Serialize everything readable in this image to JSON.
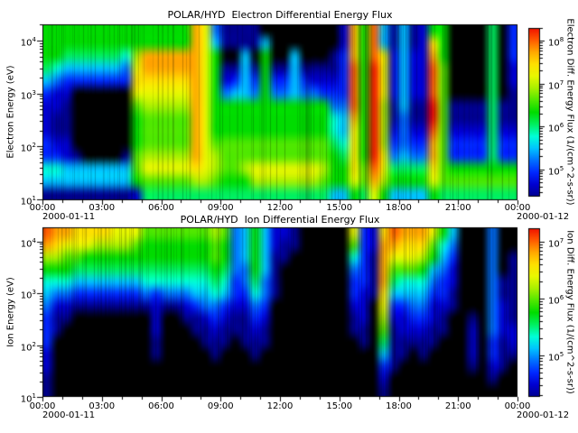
{
  "figure": {
    "background": "#ffffff",
    "text_color": "#000000"
  },
  "palette": [
    "#000000",
    "#00008f",
    "#0000d0",
    "#0028ff",
    "#0070ff",
    "#00c3ff",
    "#00ffd8",
    "#00f060",
    "#00dc00",
    "#50e800",
    "#a8f000",
    "#e8f800",
    "#ffe000",
    "#ffa800",
    "#ff5a00",
    "#f01000"
  ],
  "chart_data": [
    {
      "type": "heatmap",
      "title": "POLAR/HYD  Electron Differential Energy Flux",
      "ylabel": "Electron Energy (eV)",
      "x_ticks": [
        "00:00",
        "03:00",
        "06:00",
        "09:00",
        "12:00",
        "15:00",
        "18:00",
        "21:00",
        "00:00"
      ],
      "x_major_tick_hours": 3,
      "x_minor_tick_hours": 1,
      "date_left": "2000-01-11",
      "date_right": "2000-01-12",
      "x_range_hours": [
        0,
        24
      ],
      "y_ticks_exp": [
        4,
        3,
        2,
        1
      ],
      "y_range_ev_log10": [
        1.0,
        4.3
      ],
      "y_scale": "log",
      "colorbar": {
        "label": "Electron Diff. Energy Flux (1/(cm^2-s-sr))",
        "ticks_exp": [
          8,
          7,
          6,
          5
        ],
        "range_log10": [
          4.4,
          8.3
        ]
      },
      "grid_encoding": "rows top(10^4.3 eV)->bottom(10^1 eV); 48 columns = 30-min bins 00:00->24:00; hex char = palette index 0(black/below threshold)..15(red, ~10^8.3 flux)",
      "time_bin_hours": 0.5,
      "grid": [
        "888888888888888db41111000000002d8e51512880000703",
        "888888888888888db51111500000002d8e51512c80000703",
        "887777776addddddb80050800500013d8eb2522d80000703",
        "765555554bddddddb81151811511113e8fb2522e90000702",
        "543333333ccccccdb82353833532223e8fb2522e90000702",
        "322000000bbbbbbdb84554844544333e8fb2522e90000701",
        "2210000009aaaaadb88888888888844e8fa1511f91111711",
        "211000000899999db88888888888865d8fa1411f91111711",
        "211000000899999db88888888888865c8fa2422e92222722",
        "322000000899999db99999999999976c8fa3433d93333733",
        "3321000019aaaaadba9999999999987c8fb4544d93333733",
        "6655555559bbbbbcba99abbbbbbba88c9eb7777c98888888",
        "555555555899999aa9888aaaaaaa988b9da8888b99999999",
        "111111111277777777777777777775587b85555877777777"
      ]
    },
    {
      "type": "heatmap",
      "title": "POLAR/HYD  Ion Differential Energy Flux",
      "ylabel": "Ion Energy (eV)",
      "x_ticks": [
        "00:00",
        "03:00",
        "06:00",
        "09:00",
        "12:00",
        "15:00",
        "18:00",
        "21:00",
        "00:00"
      ],
      "x_major_tick_hours": 3,
      "x_minor_tick_hours": 1,
      "date_left": "2000-01-11",
      "date_right": "2000-01-12",
      "x_range_hours": [
        0,
        24
      ],
      "y_ticks_exp": [
        4,
        3,
        2,
        1
      ],
      "y_range_ev_log10": [
        1.0,
        4.3
      ],
      "y_scale": "log",
      "colorbar": {
        "label": "Ion Diff. Energy Flux (1/(cm^2-s-sr))",
        "ticks_exp": [
          7,
          6,
          5
        ],
        "range_log10": [
          4.2,
          7.2
        ]
      },
      "grid_encoding": "rows top(10^4.3 eV)->bottom(10^1 eV); 48 columns = 30-min bins 00:00->24:00; hex char = palette index 0(black/below threshold)..15(red, ~10^7.2 flux)",
      "time_bin_hours": 0.5,
      "grid": [
        "eddccccbbb9999999a9458522100000b32cedddb85000400",
        "dcbbbaaaa9888888898458521100000932ddccc964000400",
        "aa99888888888888898458511000000631dbbba853000401",
        "8887777777777777787448510000000431d9998542000401",
        "6665555555666666676347410000000331d7666432000411",
        "5443333333434445565336410000000321c5555331000411",
        "4221111111121123443224300000000220b3344221000421",
        "3110000000020011232113200000000120a2233210010421",
        "310000000002000112111210000000011091222110020422",
        "300000000001000011101110000000001071111100020312",
        "200000000001000001000100000000000051101000020311",
        "200000000000000000000000000000000031000000010210",
        "100000000000000000000000000000000020000000000100",
        "100000000000000000000000000000000010000000000000"
      ]
    }
  ]
}
